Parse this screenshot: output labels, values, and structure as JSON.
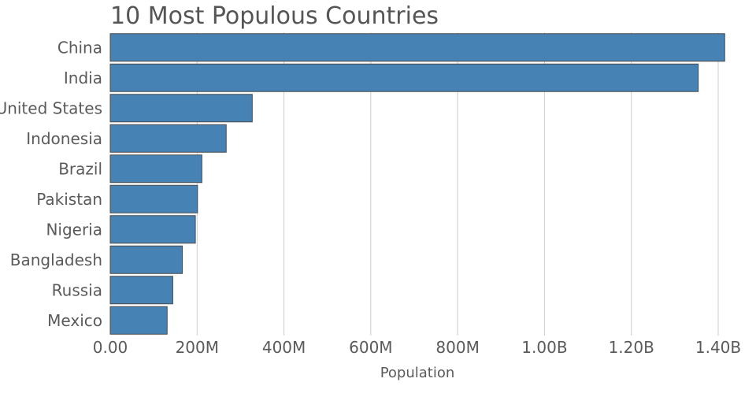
{
  "chart_data": {
    "type": "bar",
    "orientation": "horizontal",
    "title": "10 Most Populous Countries",
    "xlabel": "Population",
    "ylabel": "",
    "categories": [
      "China",
      "India",
      "United States",
      "Indonesia",
      "Brazil",
      "Pakistan",
      "Nigeria",
      "Bangladesh",
      "Russia",
      "Mexico"
    ],
    "values": [
      1415000000,
      1354000000,
      327000000,
      267000000,
      211000000,
      201000000,
      196000000,
      166000000,
      144000000,
      131000000
    ],
    "xlim": [
      0,
      1400000000
    ],
    "xticks": [
      0,
      200000000,
      400000000,
      600000000,
      800000000,
      1000000000,
      1200000000,
      1400000000
    ],
    "xtick_labels": [
      "0.00",
      "200M",
      "400M",
      "600M",
      "800M",
      "1.00B",
      "1.20B",
      "1.40B"
    ],
    "grid": true,
    "legend": "none",
    "colors": {
      "bar": "#4682b4",
      "bar_edge": "#4a4a4a",
      "grid": "#cccccc",
      "text": "#5a5a5a"
    }
  }
}
